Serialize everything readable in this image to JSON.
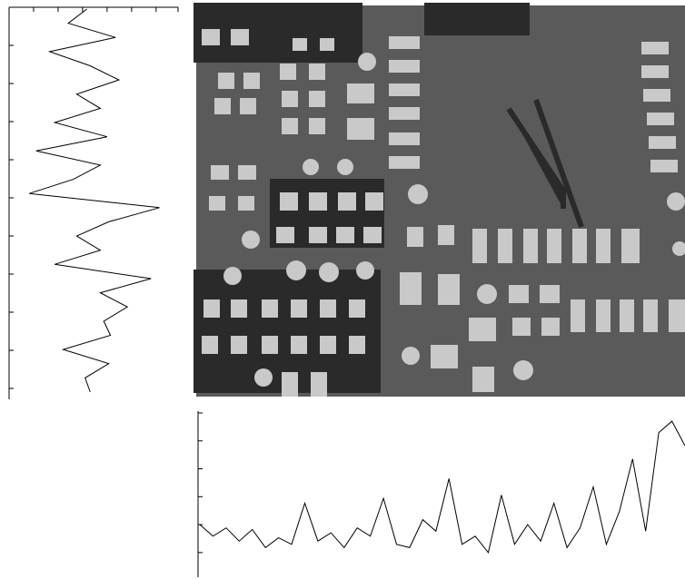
{
  "chart_data": [
    {
      "type": "line",
      "orientation": "vertical",
      "color": "#000",
      "xlim": [
        0,
        100
      ],
      "xticks": [
        0,
        14.5,
        29,
        43.5,
        58,
        72.5,
        87,
        100
      ],
      "values": [
        46,
        35,
        63,
        24,
        48,
        65,
        40,
        54,
        27,
        58,
        16,
        54,
        38,
        12,
        89,
        59,
        40,
        54,
        27,
        84,
        54,
        70,
        56,
        60,
        32,
        59,
        45,
        48
      ]
    },
    {
      "type": "line",
      "orientation": "horizontal",
      "color": "#000",
      "ylim": [
        0,
        100
      ],
      "yticks": [
        15,
        32,
        49,
        66,
        83,
        100
      ],
      "values": [
        32,
        25,
        30,
        22,
        29,
        18,
        24,
        20,
        45,
        22,
        27,
        18,
        30,
        25,
        48,
        20,
        18,
        35,
        28,
        60,
        20,
        25,
        15,
        50,
        20,
        32,
        22,
        45,
        18,
        30,
        55,
        20,
        40,
        72,
        28,
        88,
        95,
        80
      ]
    }
  ]
}
